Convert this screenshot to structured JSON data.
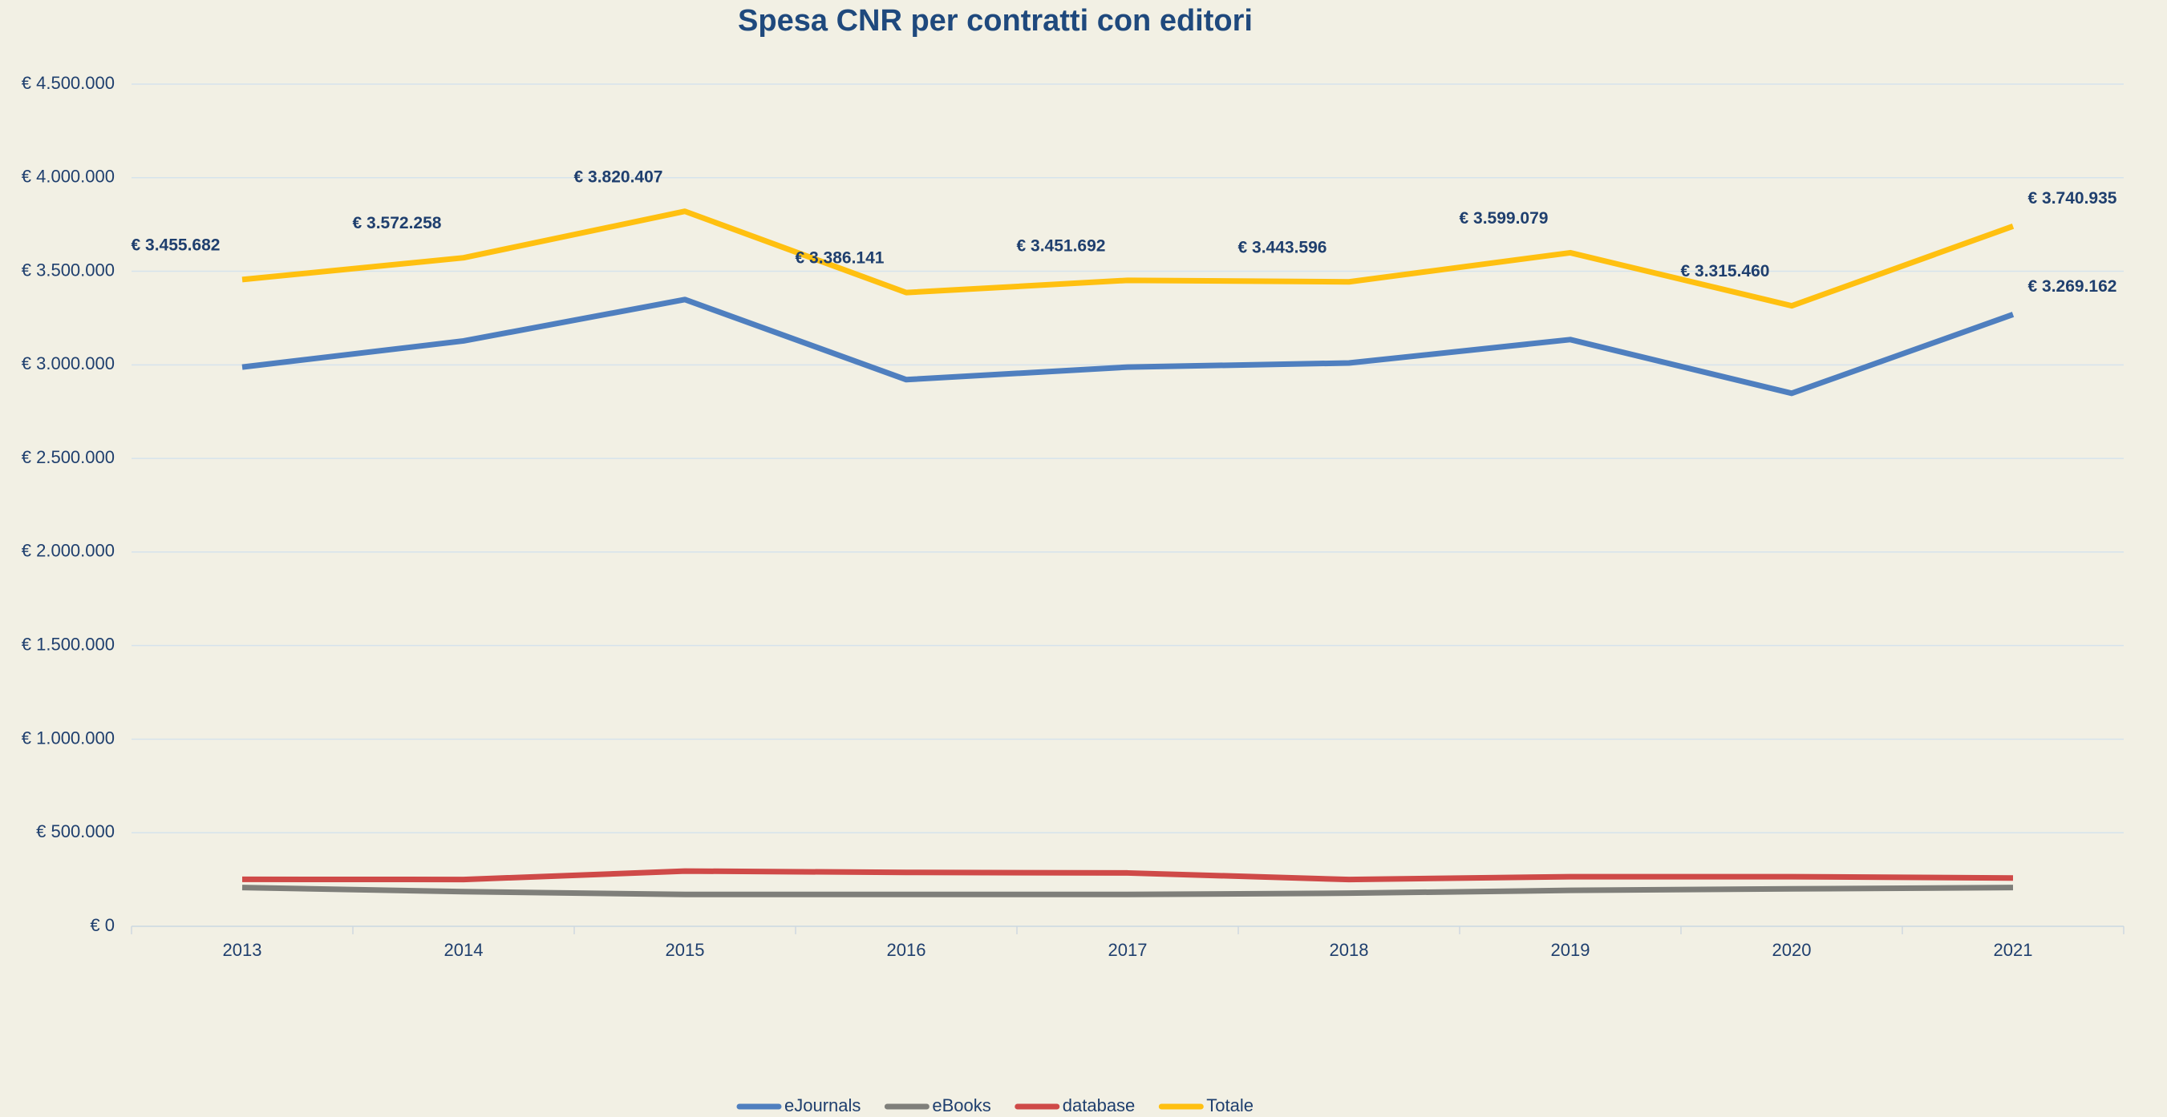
{
  "chart_data": {
    "type": "line",
    "title": "Spesa CNR per contratti con editori",
    "categories": [
      "2013",
      "2014",
      "2015",
      "2016",
      "2017",
      "2018",
      "2019",
      "2020",
      "2021"
    ],
    "series": [
      {
        "name": "eJournals",
        "color": "#4f7fbf",
        "values": [
          2988000,
          3128000,
          3349000,
          2921000,
          2988000,
          3010000,
          3135000,
          2848000,
          3269162
        ],
        "value_labels": [
          null,
          null,
          null,
          null,
          null,
          null,
          null,
          null,
          "€ 3.269.162"
        ]
      },
      {
        "name": "eBooks",
        "color": "#7f7f7a",
        "values": [
          207000,
          185000,
          170000,
          170000,
          170000,
          177000,
          192000,
          200000,
          207000
        ]
      },
      {
        "name": "database",
        "color": "#cf4a48",
        "values": [
          251000,
          250000,
          295000,
          288000,
          285000,
          250000,
          265000,
          265000,
          258000
        ]
      },
      {
        "name": "Totale",
        "color": "#ffc010",
        "values": [
          3455682,
          3572258,
          3820407,
          3386141,
          3451692,
          3443596,
          3599079,
          3315460,
          3740935
        ],
        "value_labels": [
          "€ 3.455.682",
          "€ 3.572.258",
          "€ 3.820.407",
          "€ 3.386.141",
          "€ 3.451.692",
          "€ 3.443.596",
          "€ 3.599.079",
          "€ 3.315.460",
          "€ 3.740.935"
        ]
      }
    ],
    "ylim": [
      0,
      4500000
    ],
    "yticks": [
      {
        "value": 0,
        "label": "€ 0"
      },
      {
        "value": 500000,
        "label": "€ 500.000"
      },
      {
        "value": 1000000,
        "label": "€ 1.000.000"
      },
      {
        "value": 1500000,
        "label": "€ 1.500.000"
      },
      {
        "value": 2000000,
        "label": "€ 2.000.000"
      },
      {
        "value": 2500000,
        "label": "€ 2.500.000"
      },
      {
        "value": 3000000,
        "label": "€ 3.000.000"
      },
      {
        "value": 3500000,
        "label": "€ 3.500.000"
      },
      {
        "value": 4000000,
        "label": "€ 4.000.000"
      },
      {
        "value": 4500000,
        "label": "€ 4.500.000"
      }
    ],
    "grid": true,
    "legend": "bottom"
  }
}
